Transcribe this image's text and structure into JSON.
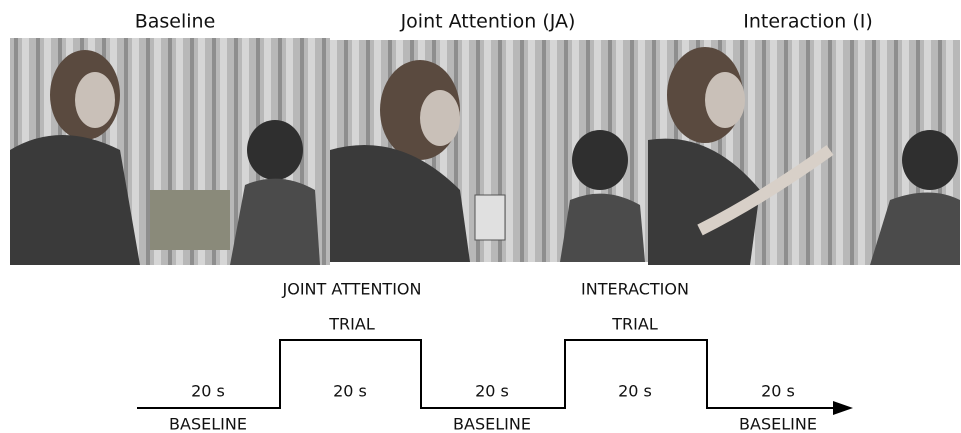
{
  "panels": [
    {
      "title": "Baseline"
    },
    {
      "title": "Joint Attention (JA)"
    },
    {
      "title": "Interaction (I)"
    }
  ],
  "timeline": {
    "segments": [
      {
        "duration": "20 s",
        "label": "BASELINE"
      },
      {
        "duration": "20 s",
        "label_lines": [
          "JOINT ATTENTION",
          "TRIAL"
        ]
      },
      {
        "duration": "20 s",
        "label": "BASELINE"
      },
      {
        "duration": "20 s",
        "label_lines": [
          "INTERACTION",
          "TRIAL"
        ]
      },
      {
        "duration": "20 s",
        "label": "BASELINE"
      }
    ]
  }
}
